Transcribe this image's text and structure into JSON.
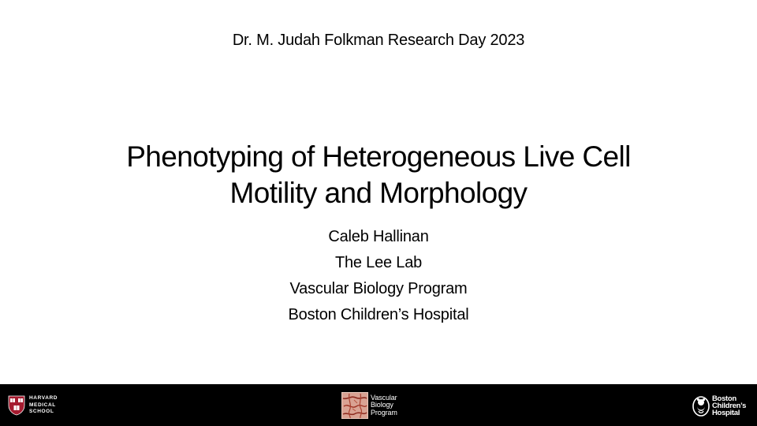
{
  "slide": {
    "event": "Dr. M. Judah Folkman Research Day 2023",
    "title_lines": [
      "Phenotyping of Heterogeneous Live Cell",
      "Motility and Morphology"
    ],
    "authors": [
      "Caleb Hallinan",
      "The Lee Lab",
      "Vascular Biology Program",
      "Boston Children’s Hospital"
    ]
  },
  "footer": {
    "background": "#000000",
    "logos": {
      "harvard": {
        "icon": "harvard-shield-icon",
        "lines": [
          "HARVARD",
          "MEDICAL",
          "SCHOOL"
        ],
        "shield_color": "#a51c30"
      },
      "vascular": {
        "icon": "vascular-network-icon",
        "lines": [
          "Vascular",
          "Biology",
          "Program"
        ]
      },
      "boston": {
        "icon": "boston-childrens-bear-icon",
        "lines": [
          "Boston",
          "Children’s",
          "Hospital"
        ]
      }
    }
  }
}
